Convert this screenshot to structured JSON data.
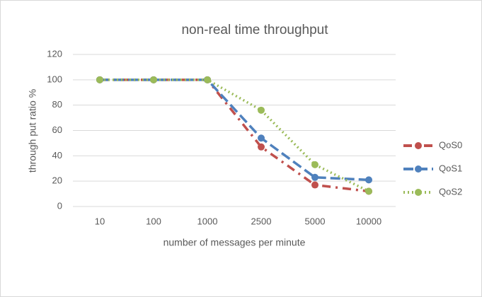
{
  "chart_data": {
    "type": "line",
    "title": "non-real time throughput",
    "x_label": "number of messages per minute",
    "y_label": "through put ratio %",
    "categories": [
      "10",
      "100",
      "1000",
      "2500",
      "5000",
      "10000"
    ],
    "series": [
      {
        "name": "QoS0",
        "color": "#c0504d",
        "style": "dash-dot",
        "values": [
          100,
          100,
          100,
          47,
          17,
          12
        ]
      },
      {
        "name": "QoS1",
        "color": "#4f81bd",
        "style": "dashed",
        "values": [
          100,
          100,
          100,
          54,
          23,
          21
        ]
      },
      {
        "name": "QoS2",
        "color": "#9bbb59",
        "style": "dotted",
        "values": [
          100,
          100,
          100,
          76,
          33,
          12
        ]
      }
    ],
    "ylim": [
      0,
      120
    ],
    "yticks": [
      0,
      20,
      40,
      60,
      80,
      100,
      120
    ],
    "grid": true,
    "legend": "right"
  }
}
